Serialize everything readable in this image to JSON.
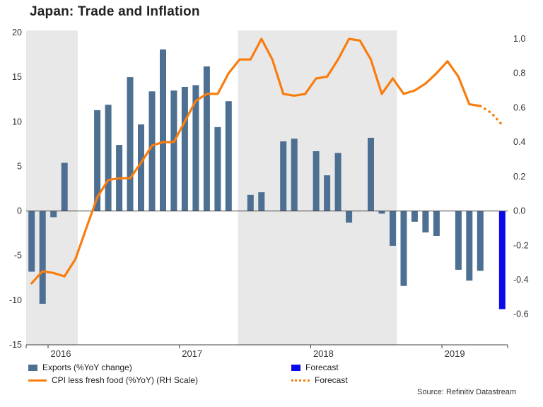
{
  "title": "Japan: Trade and Inflation",
  "source_credit": "Source: Refinitiv Datastream",
  "colors": {
    "bar": "#4d6f91",
    "bar_forecast": "#0a0ae8",
    "line": "#f87d0e",
    "band": "#e8e8e8",
    "axis_text": "#333333"
  },
  "legend": {
    "exports": "Exports (%YoY change)",
    "exports_forecast": "Forecast",
    "cpi": "CPI less fresh food (%YoY) (RH Scale)",
    "cpi_forecast": "Forecast"
  },
  "chart_data": {
    "type": "bar",
    "title": "Japan: Trade and Inflation",
    "x_unit": "month",
    "year_ticks": [
      {
        "label": "2016",
        "slot": 2
      },
      {
        "label": "2017",
        "slot": 14
      },
      {
        "label": "2018",
        "slot": 26
      },
      {
        "label": "2019",
        "slot": 38
      }
    ],
    "left_axis": {
      "min": -15,
      "max": 20,
      "ticks": [
        20,
        15,
        10,
        5,
        0,
        -5,
        -10,
        -15
      ]
    },
    "right_axis": {
      "min": -0.6,
      "max": 1.0,
      "ticks": [
        "1.0",
        "0.8",
        "0.6",
        "0.4",
        "0.2",
        "0.0",
        "-0.2",
        "-0.4",
        "-0.6"
      ]
    },
    "grid": false,
    "legend_position": "bottom-left",
    "shaded_bands": [
      {
        "start_frac": 0.0,
        "end_frac": 0.107
      },
      {
        "start_frac": 0.44,
        "end_frac": 0.77
      }
    ],
    "series": [
      {
        "name": "Exports (%YoY change)",
        "type": "bar",
        "axis": "left",
        "forecast_last_n": 1,
        "values": [
          -6.8,
          -10.4,
          -0.7,
          5.4,
          0,
          0,
          11.3,
          11.9,
          7.4,
          15.0,
          9.7,
          13.4,
          18.1,
          13.5,
          13.9,
          14.1,
          16.2,
          9.4,
          12.3,
          0,
          1.8,
          2.1,
          0,
          7.8,
          8.1,
          0,
          6.7,
          4.0,
          6.5,
          -1.3,
          0,
          8.2,
          -0.3,
          -3.9,
          -8.4,
          -1.2,
          -2.4,
          -2.8,
          0,
          -6.6,
          -7.8,
          -6.7,
          0,
          -11.0
        ]
      },
      {
        "name": "CPI less fresh food (%YoY) (RH Scale)",
        "type": "line",
        "axis": "right",
        "forecast_from_index": 41,
        "values": [
          -0.42,
          -0.35,
          -0.36,
          -0.38,
          -0.28,
          -0.1,
          0.08,
          0.18,
          0.19,
          0.19,
          0.28,
          0.38,
          0.4,
          0.4,
          0.52,
          0.64,
          0.68,
          0.68,
          0.8,
          0.88,
          0.88,
          1.0,
          0.88,
          0.68,
          0.67,
          0.68,
          0.77,
          0.78,
          0.88,
          1.0,
          0.99,
          0.88,
          0.68,
          0.77,
          0.68,
          0.7,
          0.74,
          0.8,
          0.87,
          0.78,
          0.62,
          0.61,
          0.57,
          0.5
        ]
      }
    ]
  }
}
